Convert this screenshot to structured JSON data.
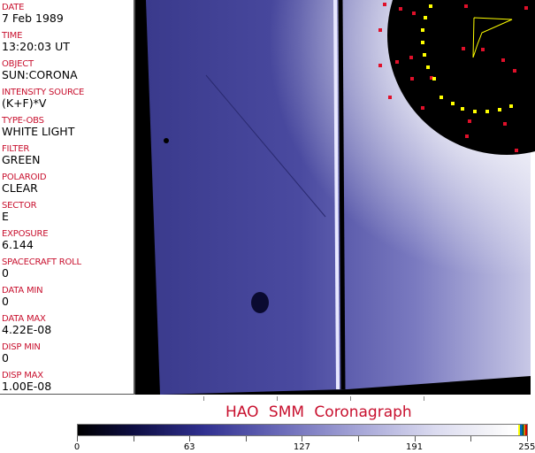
{
  "info_panel": {
    "fields": [
      {
        "label": "DATE",
        "value": "7 Feb 1989"
      },
      {
        "label": "TIME",
        "value": "13:20:03 UT"
      },
      {
        "label": "OBJECT",
        "value": "SUN:CORONA"
      },
      {
        "label": "INTENSITY SOURCE",
        "value": "(K+F)*V"
      },
      {
        "label": "TYPE-OBS",
        "value": "WHITE LIGHT"
      },
      {
        "label": "FILTER",
        "value": "GREEN"
      },
      {
        "label": "POLAROID",
        "value": "CLEAR"
      },
      {
        "label": "SECTOR",
        "value": "E"
      },
      {
        "label": "EXPOSURE",
        "value": "6.144"
      },
      {
        "label": "SPACECRAFT ROLL",
        "value": "0"
      },
      {
        "label": "DATA MIN",
        "value": "0"
      },
      {
        "label": "DATA MAX",
        "value": "4.22E-08"
      },
      {
        "label": "DISP MIN",
        "value": "0"
      },
      {
        "label": "DISP MAX",
        "value": "1.00E-08"
      }
    ]
  },
  "title": "HAO  SMM Coronagraph",
  "colorbar": {
    "ticks": [
      "0",
      "63",
      "127",
      "191",
      "255"
    ],
    "colors": {
      "low": "#000000",
      "mid": "#6a6ab8",
      "high": "#ffffff"
    }
  },
  "colors": {
    "label": "#c8102e",
    "overlay_red": "#e0102a",
    "overlay_yellow": "#ffff00"
  }
}
